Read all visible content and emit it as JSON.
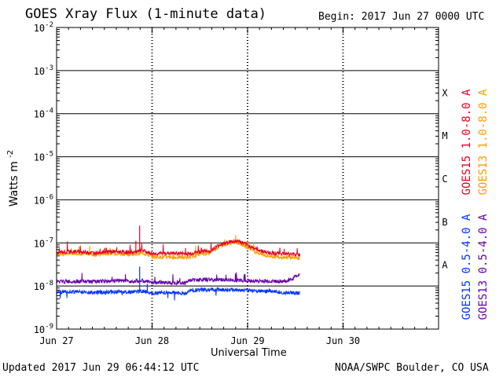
{
  "header": {
    "title": "GOES Xray Flux (1-minute data)",
    "begin": "Begin:  2017 Jun 27 0000 UTC"
  },
  "footer": {
    "updated": "Updated 2017 Jun 29 06:44:12 UTC",
    "credit": "NOAA/SWPC Boulder, CO USA"
  },
  "chart_data": {
    "type": "line",
    "xlabel": "Universal Time",
    "ylabel": "Watts m",
    "ylabel_sup": "-2",
    "ylog": true,
    "ylim": [
      1e-09,
      0.01
    ],
    "xlim_days": [
      0,
      4
    ],
    "x_ticks": [
      "Jun 27",
      "Jun 28",
      "Jun 29",
      "Jun 30"
    ],
    "y_ticks": [
      {
        "base": "10",
        "exp": "-9"
      },
      {
        "base": "10",
        "exp": "-8"
      },
      {
        "base": "10",
        "exp": "-7"
      },
      {
        "base": "10",
        "exp": "-6"
      },
      {
        "base": "10",
        "exp": "-5"
      },
      {
        "base": "10",
        "exp": "-4"
      },
      {
        "base": "10",
        "exp": "-3"
      },
      {
        "base": "10",
        "exp": "-2"
      }
    ],
    "flare_classes": [
      {
        "label": "A",
        "log": -7.5
      },
      {
        "label": "B",
        "log": -6.5
      },
      {
        "label": "C",
        "log": -5.5
      },
      {
        "label": "M",
        "log": -4.5
      },
      {
        "label": "X",
        "log": -3.5
      }
    ],
    "series": [
      {
        "name": "GOES15 1.0-8.0 A",
        "color": "#e8001c",
        "points": [
          [
            0,
            -7.22
          ],
          [
            0.2,
            -7.2
          ],
          [
            0.4,
            -7.23
          ],
          [
            0.6,
            -7.2
          ],
          [
            0.8,
            -7.22
          ],
          [
            0.9,
            -7.18
          ],
          [
            1.0,
            -7.25
          ],
          [
            1.2,
            -7.24
          ],
          [
            1.4,
            -7.25
          ],
          [
            1.5,
            -7.2
          ],
          [
            1.6,
            -7.2
          ],
          [
            1.7,
            -7.05
          ],
          [
            1.8,
            -6.98
          ],
          [
            1.9,
            -6.95
          ],
          [
            2.0,
            -7.05
          ],
          [
            2.1,
            -7.15
          ],
          [
            2.2,
            -7.22
          ],
          [
            2.3,
            -7.24
          ],
          [
            2.4,
            -7.25
          ],
          [
            2.5,
            -7.27
          ],
          [
            2.55,
            -7.28
          ]
        ],
        "spikes": [
          [
            0.52,
            -7.12
          ],
          [
            0.63,
            -7.1
          ],
          [
            0.83,
            -6.95
          ],
          [
            0.87,
            -6.6
          ],
          [
            1.35,
            -7.12
          ],
          [
            1.52,
            -7.15
          ]
        ]
      },
      {
        "name": "GOES13 1.0-8.0 A",
        "color": "#ff9c00",
        "points": [
          [
            0,
            -7.26
          ],
          [
            0.2,
            -7.24
          ],
          [
            0.4,
            -7.27
          ],
          [
            0.6,
            -7.24
          ],
          [
            0.8,
            -7.27
          ],
          [
            0.9,
            -7.23
          ],
          [
            1.0,
            -7.32
          ],
          [
            1.2,
            -7.34
          ],
          [
            1.4,
            -7.33
          ],
          [
            1.5,
            -7.25
          ],
          [
            1.6,
            -7.24
          ],
          [
            1.7,
            -7.08
          ],
          [
            1.8,
            -7.01
          ],
          [
            1.9,
            -6.99
          ],
          [
            2.0,
            -7.1
          ],
          [
            2.1,
            -7.22
          ],
          [
            2.2,
            -7.3
          ],
          [
            2.3,
            -7.32
          ],
          [
            2.4,
            -7.33
          ],
          [
            2.5,
            -7.34
          ],
          [
            2.55,
            -7.35
          ]
        ],
        "spikes": []
      },
      {
        "name": "GOES15 0.5-4.0 A",
        "color": "#0033ff",
        "points": [
          [
            0,
            -8.14
          ],
          [
            0.2,
            -8.13
          ],
          [
            0.4,
            -8.15
          ],
          [
            0.6,
            -8.13
          ],
          [
            0.8,
            -8.14
          ],
          [
            0.9,
            -8.12
          ],
          [
            1.0,
            -8.16
          ],
          [
            1.2,
            -8.15
          ],
          [
            1.35,
            -8.18
          ],
          [
            1.4,
            -8.1
          ],
          [
            1.6,
            -8.09
          ],
          [
            1.8,
            -8.08
          ],
          [
            2.0,
            -8.1
          ],
          [
            2.2,
            -8.12
          ],
          [
            2.4,
            -8.15
          ],
          [
            2.55,
            -8.17
          ]
        ],
        "spikes": [
          [
            0.87,
            -7.55
          ],
          [
            0.95,
            -7.95
          ]
        ]
      },
      {
        "name": "GOES13 0.5-4.0 A",
        "color": "#6600aa",
        "points": [
          [
            0,
            -7.9
          ],
          [
            0.2,
            -7.89
          ],
          [
            0.4,
            -7.9
          ],
          [
            0.6,
            -7.88
          ],
          [
            0.8,
            -7.89
          ],
          [
            0.9,
            -7.88
          ],
          [
            1.0,
            -7.92
          ],
          [
            1.2,
            -7.92
          ],
          [
            1.35,
            -7.93
          ],
          [
            1.4,
            -7.86
          ],
          [
            1.6,
            -7.85
          ],
          [
            1.8,
            -7.86
          ],
          [
            2.0,
            -7.88
          ],
          [
            2.2,
            -7.89
          ],
          [
            2.4,
            -7.89
          ],
          [
            2.45,
            -7.85
          ],
          [
            2.55,
            -7.72
          ]
        ],
        "spikes": []
      }
    ]
  }
}
